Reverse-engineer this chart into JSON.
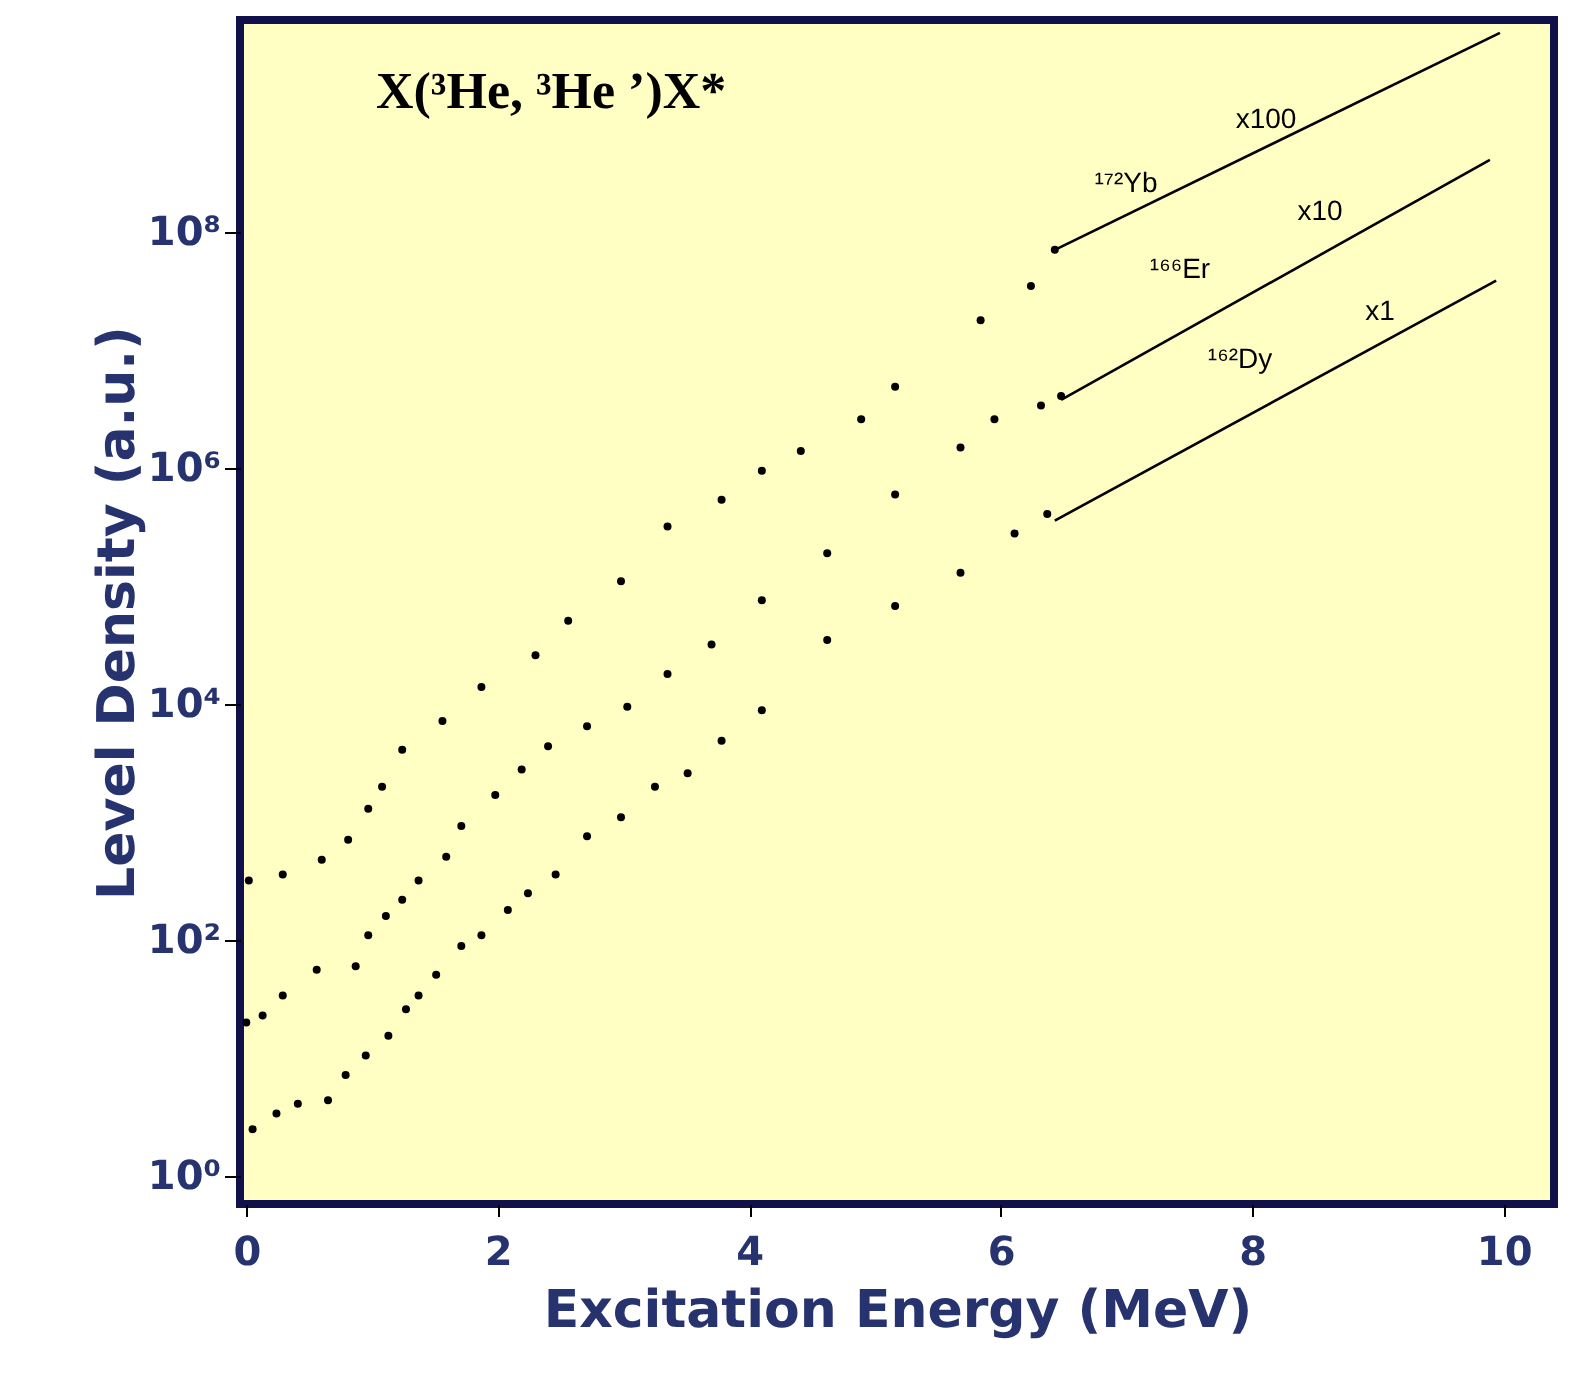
{
  "chart_data": {
    "type": "scatter",
    "title": "X(³He, ³He ’)X*",
    "xlabel": "Excitation Energy (MeV)",
    "ylabel": "Level Density  (a.u.)",
    "xlim": [
      -0.05,
      10.4
    ],
    "xticks": [
      0,
      2,
      4,
      6,
      8,
      10
    ],
    "ylim": [
      0.58,
      6300000000.0
    ],
    "yticks": [
      {
        "value": 1,
        "label": "10⁰"
      },
      {
        "value": 100,
        "label": "10²"
      },
      {
        "value": 10000,
        "label": "10⁴"
      },
      {
        "value": 1000000,
        "label": "10⁶"
      },
      {
        "value": 100000000,
        "label": "10⁸"
      }
    ],
    "log": "y",
    "grid": false,
    "marker": "circle",
    "series": [
      {
        "color": "#000000",
        "x": [
          0.02,
          0.29,
          0.6,
          0.81,
          0.97,
          1.08,
          1.24,
          1.56,
          1.87,
          2.3,
          2.56,
          2.98,
          3.35,
          3.78,
          4.1,
          4.41,
          4.89,
          5.16,
          5.84,
          6.24,
          6.43
        ],
        "values": [
          320,
          360,
          480,
          710,
          1300,
          2000,
          4100,
          7200,
          14000,
          26000,
          51000,
          110000,
          320000,
          540000,
          950000,
          1400000,
          2600000,
          4900000,
          18000000,
          35000000,
          71000000
        ]
      },
      {
        "color": "#000000",
        "x": [
          0,
          0.13,
          0.29,
          0.56,
          0.87,
          0.97,
          1.11,
          1.24,
          1.37,
          1.59,
          1.71,
          1.98,
          2.19,
          2.4,
          2.71,
          3.03,
          3.35,
          3.7,
          4.1,
          4.62,
          5.16,
          5.68,
          5.95,
          6.32,
          6.48
        ],
        "values": [
          20,
          23,
          34,
          56,
          60,
          110,
          160,
          220,
          320,
          510,
          930,
          1700,
          2800,
          4400,
          6500,
          9500,
          18000,
          32000,
          76000,
          190000,
          600000,
          1500000,
          2600000,
          3400000,
          4100000
        ]
      },
      {
        "color": "#000000",
        "x": [
          0.05,
          0.24,
          0.41,
          0.65,
          0.79,
          0.95,
          1.13,
          1.27,
          1.37,
          1.51,
          1.71,
          1.87,
          2.08,
          2.24,
          2.46,
          2.71,
          2.98,
          3.25,
          3.51,
          3.78,
          4.1,
          4.62,
          5.16,
          5.68,
          6.11,
          6.37
        ],
        "values": [
          2.5,
          3.4,
          4.1,
          4.4,
          7.2,
          10.5,
          15.5,
          26,
          34,
          51,
          89,
          110,
          180,
          250,
          360,
          760,
          1100,
          2000,
          2600,
          4900,
          8900,
          35000,
          68000,
          130000,
          280000,
          410000
        ]
      },
      {
        "type": "line",
        "color": "#000000",
        "line_style": "solid",
        "marker": "none",
        "x": [
          6.43,
          9.97
        ],
        "values": [
          71000000,
          4900000000
        ]
      },
      {
        "type": "line",
        "color": "#000000",
        "line_style": "solid",
        "marker": "none",
        "x": [
          6.48,
          9.89
        ],
        "values": [
          3800000,
          410000000
        ]
      },
      {
        "type": "line",
        "color": "#000000",
        "line_style": "solid",
        "marker": "none",
        "x": [
          6.43,
          9.94
        ],
        "values": [
          360000,
          39000000
        ]
      }
    ],
    "annotations": [
      "¹⁷²Yb",
      "x100",
      "¹⁶⁶Er",
      "x10",
      "¹⁶²Dy",
      "x1"
    ]
  }
}
